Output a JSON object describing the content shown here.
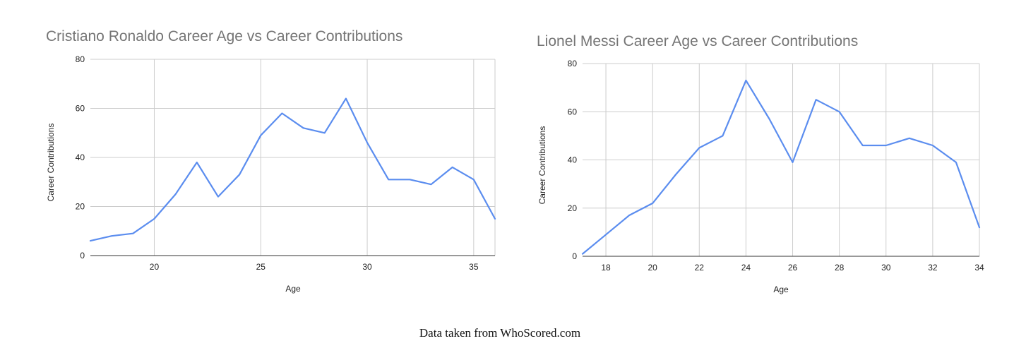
{
  "colors": {
    "series": "#5b8def",
    "grid": "#cccccc",
    "title": "#757575"
  },
  "caption": "Data taken from WhoScored.com",
  "chart_data": [
    {
      "type": "line",
      "title": "Cristiano Ronaldo Career Age vs Career Contributions",
      "xlabel": "Age",
      "ylabel": "Career Contributions",
      "xlim": [
        17,
        36
      ],
      "ylim": [
        0,
        80
      ],
      "xticks": [
        20,
        25,
        30,
        35
      ],
      "yticks": [
        0,
        20,
        40,
        60,
        80
      ],
      "grid": true,
      "series": [
        {
          "x": [
            17,
            18,
            19,
            20,
            21,
            22,
            23,
            24,
            25,
            26,
            27,
            28,
            29,
            30,
            31,
            32,
            33,
            34,
            35,
            36
          ],
          "values": [
            6,
            8,
            9,
            15,
            25,
            38,
            24,
            33,
            49,
            58,
            52,
            50,
            64,
            46,
            31,
            31,
            29,
            36,
            31,
            15
          ]
        }
      ]
    },
    {
      "type": "line",
      "title": "Lionel Messi Career Age vs Career Contributions",
      "xlabel": "Age",
      "ylabel": "Career Contributions",
      "xlim": [
        17,
        34
      ],
      "ylim": [
        0,
        80
      ],
      "xticks": [
        18,
        20,
        22,
        24,
        26,
        28,
        30,
        32,
        34
      ],
      "yticks": [
        0,
        20,
        40,
        60,
        80
      ],
      "grid": true,
      "series": [
        {
          "x": [
            17,
            18,
            19,
            20,
            21,
            22,
            23,
            24,
            25,
            26,
            27,
            28,
            29,
            30,
            31,
            32,
            33,
            34
          ],
          "values": [
            1,
            9,
            17,
            22,
            34,
            45,
            50,
            73,
            57,
            39,
            65,
            60,
            46,
            46,
            49,
            46,
            39,
            12
          ]
        }
      ]
    }
  ]
}
